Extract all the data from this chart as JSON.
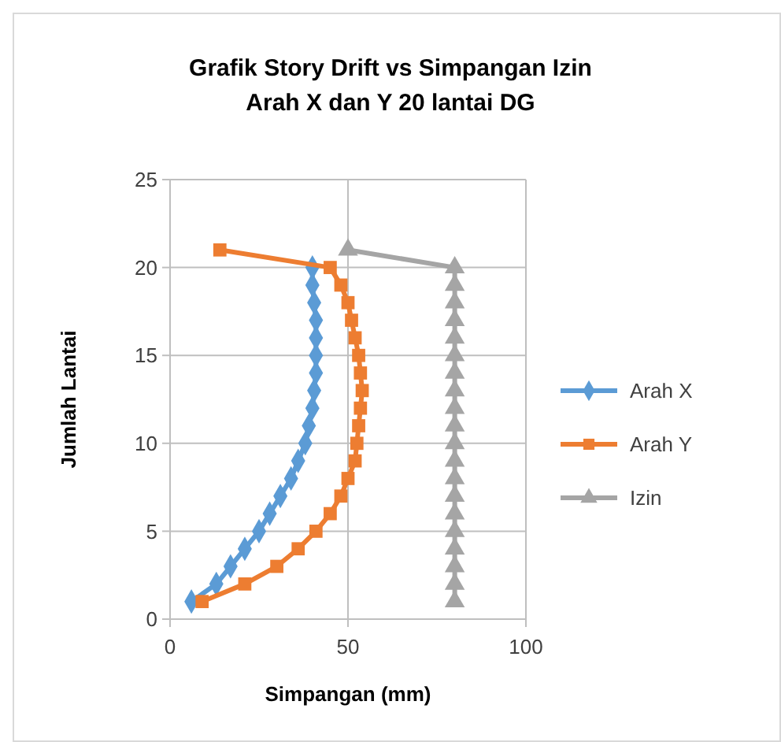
{
  "chart_data": {
    "type": "line",
    "title": "Grafik Story Drift vs Simpangan Izin\nArah X dan Y 20 lantai DG",
    "xlabel": "Simpangan (mm)",
    "ylabel": "Jumlah Lantai",
    "xlim": [
      0,
      100
    ],
    "xticks": [
      0,
      50,
      100
    ],
    "ylim": [
      0,
      25
    ],
    "yticks": [
      0,
      5,
      10,
      15,
      20,
      25
    ],
    "grid": true,
    "legend": "right",
    "line_style": "solid",
    "series": [
      {
        "name": "Arah X",
        "color": "#5b9bd5",
        "marker": "diamond",
        "x": [
          6,
          13,
          17,
          21,
          25,
          28,
          31,
          34,
          36,
          38,
          39,
          40,
          40.5,
          41,
          41,
          41,
          41,
          40.5,
          40,
          40,
          null
        ],
        "values": [
          1,
          2,
          3,
          4,
          5,
          6,
          7,
          8,
          9,
          10,
          11,
          12,
          13,
          14,
          15,
          16,
          17,
          18,
          19,
          20,
          null
        ]
      },
      {
        "name": "Arah Y",
        "color": "#ed7d31",
        "marker": "square",
        "x": [
          9,
          21,
          30,
          36,
          41,
          45,
          48,
          50,
          52,
          52.5,
          53,
          53.5,
          54,
          53.5,
          53,
          52,
          51,
          50,
          48,
          45,
          14
        ],
        "values": [
          1,
          2,
          3,
          4,
          5,
          6,
          7,
          8,
          9,
          10,
          11,
          12,
          13,
          14,
          15,
          16,
          17,
          18,
          19,
          20,
          21
        ]
      },
      {
        "name": "Izin",
        "color": "#a5a5a5",
        "marker": "triangle",
        "x": [
          80,
          80,
          80,
          80,
          80,
          80,
          80,
          80,
          80,
          80,
          80,
          80,
          80,
          80,
          80,
          80,
          80,
          80,
          80,
          80,
          50
        ],
        "values": [
          1,
          2,
          3,
          4,
          5,
          6,
          7,
          8,
          9,
          10,
          11,
          12,
          13,
          14,
          15,
          16,
          17,
          18,
          19,
          20,
          21
        ]
      }
    ]
  }
}
